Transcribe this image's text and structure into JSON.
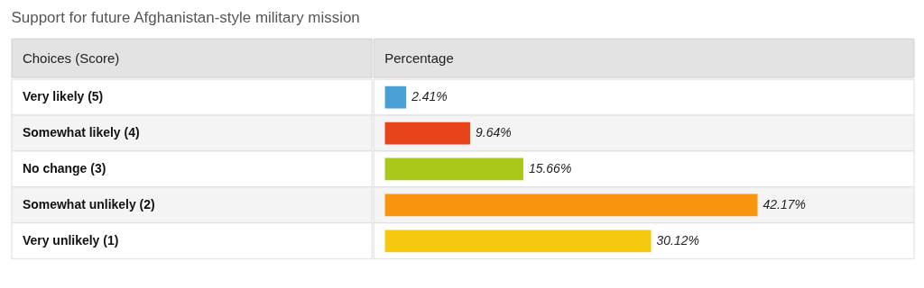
{
  "chart_data": {
    "type": "bar",
    "orientation": "horizontal",
    "title": "Support for future Afghanistan-style military mission",
    "ylabel": "Choices (Score)",
    "xlabel": "Percentage",
    "categories": [
      "Very likely (5)",
      "Somewhat likely (4)",
      "No change (3)",
      "Somewhat unlikely (2)",
      "Very unlikely (1)"
    ],
    "values": [
      2.41,
      9.64,
      15.66,
      42.17,
      30.12
    ],
    "colors": [
      "#4a9fd4",
      "#e8431a",
      "#a8c81a",
      "#f7950f",
      "#f5c90f"
    ],
    "value_labels": [
      "2.41%",
      "9.64%",
      "15.66%",
      "42.17%",
      "30.12%"
    ]
  }
}
